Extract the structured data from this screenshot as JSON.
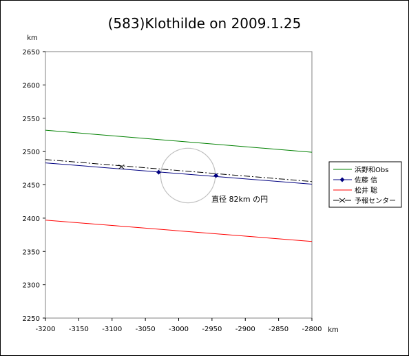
{
  "chart_data": {
    "type": "line",
    "title": "(583)Klothilde on 2009.1.25",
    "xlabel": "km",
    "ylabel": "km",
    "xlim": [
      -3200,
      -2800
    ],
    "ylim": [
      2250,
      2650
    ],
    "x_ticks": [
      "-3200",
      "-3150",
      "-3100",
      "-3050",
      "-3000",
      "-2950",
      "-2900",
      "-2850",
      "-2800"
    ],
    "y_ticks": [
      "2650",
      "2600",
      "2550",
      "2500",
      "2450",
      "2400",
      "2350",
      "2300",
      "2250"
    ],
    "grid": false,
    "legend_position": "right",
    "series": [
      {
        "name": "浜野和Obs",
        "color": "#008000",
        "style": "solid",
        "marker": "none",
        "x": [
          -3200,
          -2800
        ],
        "y": [
          2532,
          2499
        ]
      },
      {
        "name": "佐藤 信",
        "color": "#000080",
        "style": "solid",
        "marker": "diamond",
        "x": [
          -3200,
          -2800
        ],
        "y": [
          2483,
          2451
        ],
        "markers": [
          {
            "x": -3030,
            "y": 2469
          },
          {
            "x": -2944,
            "y": 2464
          }
        ]
      },
      {
        "name": "松井 聡",
        "color": "#ff0000",
        "style": "solid",
        "marker": "none",
        "x": [
          -3200,
          -2800
        ],
        "y": [
          2397,
          2365
        ]
      },
      {
        "name": "予報センター",
        "color": "#000000",
        "style": "dashdot",
        "marker": "x",
        "x": [
          -3200,
          -2800
        ],
        "y": [
          2488,
          2455
        ],
        "markers": [
          {
            "x": -3086,
            "y": 2477
          }
        ]
      }
    ],
    "circle": {
      "cx": -2986,
      "cy": 2464,
      "r": 41,
      "color": "#c0c0c0"
    },
    "annotation": "直径 82km の円"
  }
}
